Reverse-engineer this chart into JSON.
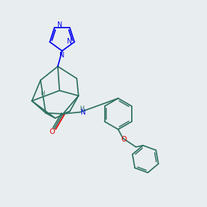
{
  "background_color": "#e8edf0",
  "bond_color": "#2d7060",
  "bond_width": 1.3,
  "nitrogen_color": "#0000ee",
  "oxygen_color": "#dd0000",
  "figsize": [
    3.0,
    3.0
  ],
  "dpi": 100,
  "xlim": [
    0,
    12
  ],
  "ylim": [
    0,
    12
  ]
}
